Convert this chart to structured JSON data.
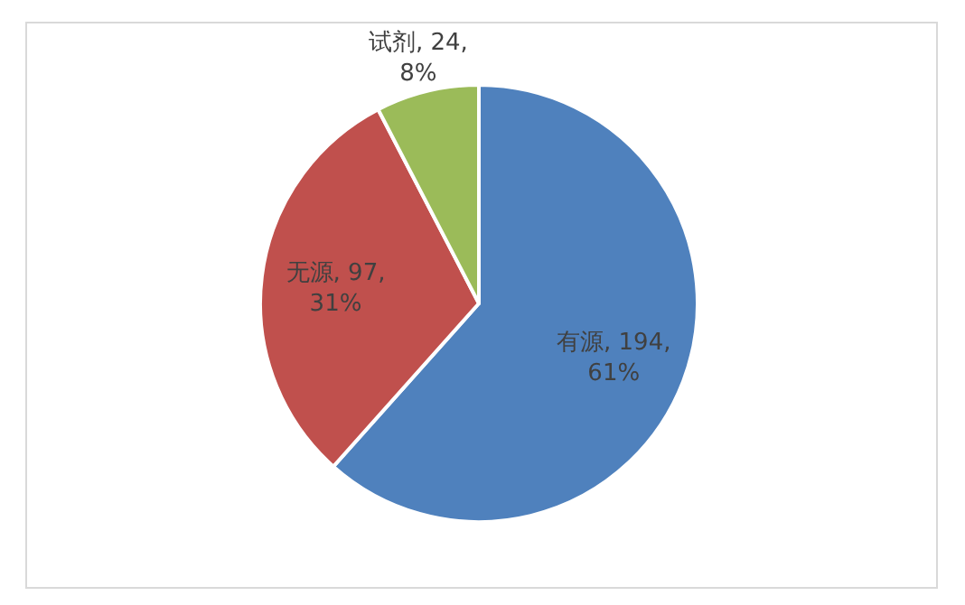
{
  "chart_data": {
    "type": "pie",
    "categories": [
      "有源",
      "无源",
      "试剂"
    ],
    "values": [
      194,
      97,
      24
    ],
    "colors": [
      "#4f81bd",
      "#c0504d",
      "#9bbb59"
    ],
    "value_labels": [
      "194, 61%",
      "97, 31%",
      "24, 8%"
    ]
  }
}
